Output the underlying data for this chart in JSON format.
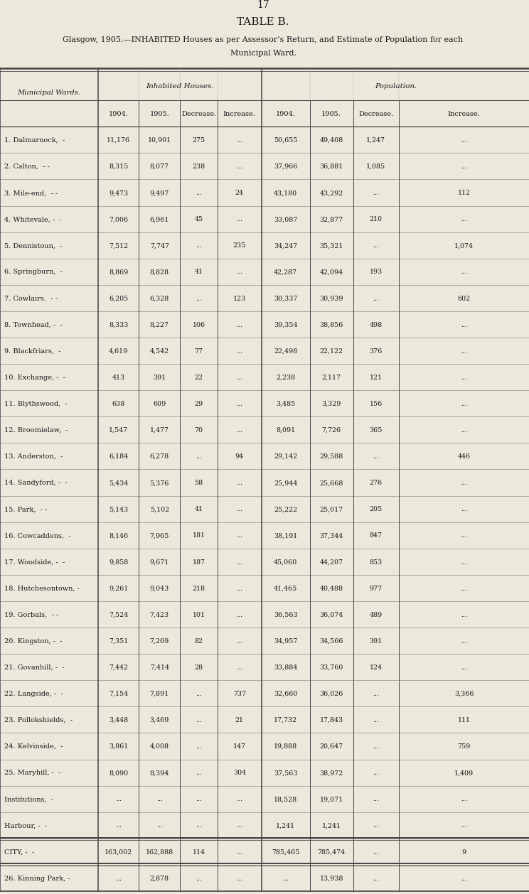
{
  "page_number": "17",
  "title": "TABLE B.",
  "subtitle_line1": "Glasgow, 1905.—INHABITED Houses as per Assessor’s Return, and Estimate of Population for each",
  "subtitle_line2": "Municipal Ward.",
  "header1": [
    "Municipal Wards.",
    "Inhabited Houses.",
    "Population."
  ],
  "header2": [
    "1904.",
    "1905.",
    "Decrease.",
    "Increase.",
    "1904.",
    "1905.",
    "Decrease.",
    "Increase."
  ],
  "rows": [
    [
      "1. Dalmarnock,",
      "-",
      "11,176",
      "10,901",
      "275",
      "...",
      "50,655",
      "49,408",
      "1,247",
      "..."
    ],
    [
      "2. Calton,",
      "- -",
      "8,315",
      "8,077",
      "238",
      "...",
      "37,966",
      "36,881",
      "1,085",
      "..."
    ],
    [
      "3. Mile-end,",
      "- -",
      "9,473",
      "9,497",
      "...",
      "24",
      "43,180",
      "43,292",
      "...",
      "112"
    ],
    [
      "4. Whitevale, -",
      "-",
      "7,006",
      "6,961",
      "45",
      "...",
      "33,087",
      "32,877",
      "210",
      "..."
    ],
    [
      "5. Dennistoun,",
      "-",
      "7,512",
      "7,747",
      "...",
      "235",
      "34,247",
      "35,321",
      "...",
      "1,074"
    ],
    [
      "6. Springburn,",
      "-",
      "8,869",
      "8,828",
      "41",
      "...",
      "42,287",
      "42,094",
      "193",
      "..."
    ],
    [
      "7. Cowlairs.",
      "- -",
      "6,205",
      "6,328",
      "...",
      "123",
      "30,337",
      "30,939",
      "...",
      "602"
    ],
    [
      "8. Townhead, -",
      "-",
      "8,333",
      "8,227",
      "106",
      "...",
      "39,354",
      "38,856",
      "498",
      "..."
    ],
    [
      "9. Blackfriars,",
      "-",
      "4,619",
      "4,542",
      "77",
      "...",
      "22,498",
      "22,122",
      "376",
      "..."
    ],
    [
      "10. Exchange, -",
      "-",
      "413",
      "391",
      "22",
      "...",
      "2,238",
      "2,117",
      "121",
      "..."
    ],
    [
      "11. Blythswood,",
      "-",
      "638",
      "609",
      "29",
      "...",
      "3,485",
      "3,329",
      "156",
      "..."
    ],
    [
      "12. Broomielaw,",
      "-",
      "1,547",
      "1,477",
      "70",
      "...",
      "8,091",
      "7,726",
      "365",
      "..."
    ],
    [
      "13. Anderston,",
      "-",
      "6,184",
      "6,278",
      "...",
      "94",
      "29,142",
      "29,588",
      "...",
      "446"
    ],
    [
      "14. Sandyford, -",
      "-",
      "5,434",
      "5,376",
      "58",
      "...",
      "25,944",
      "25,668",
      "276",
      "..."
    ],
    [
      "15. Park,",
      "- -",
      "5,143",
      "5,102",
      "41",
      "...",
      "25,222",
      "25,017",
      "205",
      "..."
    ],
    [
      "16. Cowcaddens,",
      "-",
      "8,146",
      "7,965",
      "181",
      "...",
      "38,191",
      "37,344",
      "847",
      "..."
    ],
    [
      "17. Woodside, -",
      "-",
      "9,858",
      "9,671",
      "187",
      "...",
      "45,060",
      "44,207",
      "853",
      "..."
    ],
    [
      "18. Hutchesontown, -",
      "",
      "9,261",
      "9,043",
      "218",
      "...",
      "41,465",
      "40,488",
      "977",
      "..."
    ],
    [
      "19. Gorbals,",
      "- -",
      "7,524",
      "7,423",
      "101",
      "...",
      "36,563",
      "36,074",
      "489",
      "..."
    ],
    [
      "20. Kingston, -",
      "-",
      "7,351",
      "7,269",
      "82",
      "...",
      "34,957",
      "34,566",
      "391",
      "..."
    ],
    [
      "21. Govanhill, -",
      "-",
      "7,442",
      "7,414",
      "28",
      "...",
      "33,884",
      "33,760",
      "124",
      "..."
    ],
    [
      "22. Langside, -",
      "-",
      "7,154",
      "7,891",
      "...",
      "737",
      "32,660",
      "36,026",
      "...",
      "3,366"
    ],
    [
      "23. Pollokshields,",
      "-",
      "3,448",
      "3,469",
      "...",
      "21",
      "17,732",
      "17,843",
      "...",
      "111"
    ],
    [
      "24. Kelvinside,",
      "-",
      "3,861",
      "4,008",
      "...",
      "147",
      "19,888",
      "20,647",
      "...",
      "759"
    ],
    [
      "25. Maryhill, -",
      "-",
      "8,090",
      "8,394",
      "...",
      "304",
      "37,563",
      "38,972",
      "...",
      "1,409"
    ],
    [
      "Institutions,",
      "-",
      "...",
      "...",
      "...",
      "...",
      "18,528",
      "19,071",
      "...",
      "..."
    ],
    [
      "Harbour, -",
      "-",
      "...",
      "...",
      "...",
      "...",
      "1,241",
      "1,241",
      "...",
      "..."
    ],
    [
      "CITY, -",
      "-",
      "163,002",
      "162,888",
      "114",
      "...",
      "785,465",
      "785,474",
      "...",
      "9"
    ],
    [
      "26. Kinning Park, -",
      "",
      "...",
      "2,878",
      "...",
      "...",
      "...",
      "13,938",
      "...",
      "..."
    ]
  ],
  "bg_color": "#ece8db",
  "text_color": "#1a1a1a",
  "line_color": "#444444"
}
